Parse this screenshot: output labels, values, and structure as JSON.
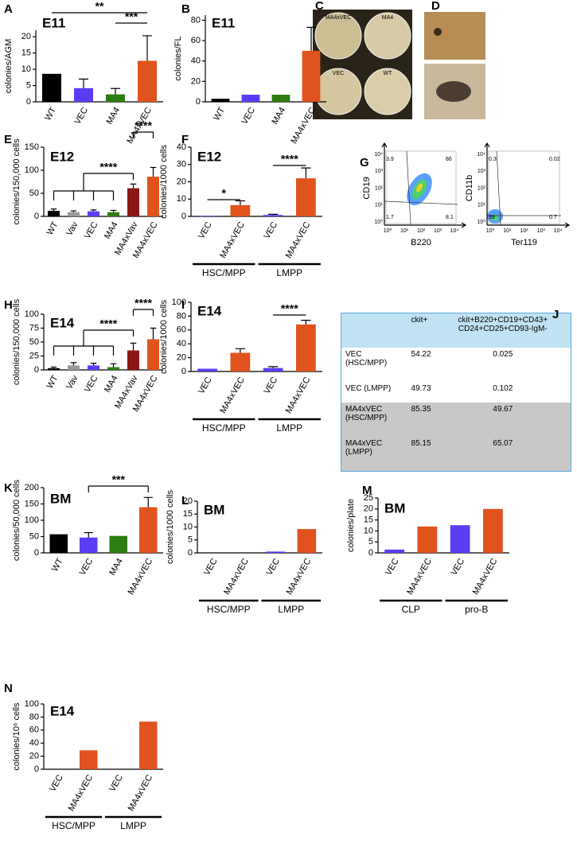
{
  "chart_data": [
    {
      "type": "bar",
      "panel": "A",
      "title": "E11",
      "y_label": "colonies/AGM",
      "categories": [
        "WT",
        "VEC",
        "MA4",
        "MA4xVEC"
      ],
      "values": [
        8.6,
        4.2,
        2.3,
        12.6
      ],
      "errors": [
        null,
        2.8,
        1.8,
        7.7
      ],
      "colors": [
        "#000000",
        "#5b3cf5",
        "#2e7d12",
        "#e0521e"
      ],
      "ylim": [
        0,
        22
      ],
      "yticks": [
        0,
        5,
        10,
        15,
        20
      ],
      "annotations": [
        "**",
        "***"
      ]
    },
    {
      "type": "bar",
      "panel": "B",
      "title": "E11",
      "y_label": "colonies/FL",
      "categories": [
        "WT",
        "VEC",
        "MA4",
        "MA4xVEC"
      ],
      "values": [
        3,
        7,
        7,
        50
      ],
      "errors": [
        null,
        null,
        null,
        23
      ],
      "colors": [
        "#000000",
        "#5b3cf5",
        "#2e7d12",
        "#e0521e"
      ],
      "ylim": [
        0,
        85
      ],
      "yticks": [
        0,
        20,
        40,
        60,
        80
      ]
    },
    {
      "type": "bar",
      "panel": "E",
      "title": "E12",
      "y_label": "colonies/150,000 cells",
      "categories": [
        "WT",
        "Vav",
        "VEC",
        "MA4",
        "MA4xVav",
        "MA4xVEC"
      ],
      "values": [
        12,
        9,
        11,
        9,
        61,
        86
      ],
      "errors": [
        4,
        3,
        3,
        4,
        9,
        20
      ],
      "colors": [
        "#000000",
        "#999999",
        "#5b3cf5",
        "#2e7d12",
        "#8b1515",
        "#e0521e"
      ],
      "ylim": [
        0,
        150
      ],
      "yticks": [
        0,
        50,
        100,
        150
      ],
      "annotations": [
        "****",
        "****"
      ]
    },
    {
      "type": "bar",
      "panel": "F",
      "title": "E12",
      "y_label": "colonies/1000 cells",
      "categories": [
        "VEC",
        "MA4xVEC",
        "VEC",
        "MA4xVEC"
      ],
      "values": [
        0.3,
        6.5,
        0.8,
        22
      ],
      "errors": [
        null,
        2.5,
        0.4,
        6
      ],
      "colors": [
        "#5b3cf5",
        "#e0521e",
        "#5b3cf5",
        "#e0521e"
      ],
      "ylim": [
        0,
        40
      ],
      "yticks": [
        0,
        10,
        20,
        30,
        40
      ],
      "groups": [
        "HSC/MPP",
        "LMPP"
      ],
      "annotations": [
        "*",
        "****"
      ]
    },
    {
      "type": "bar",
      "panel": "H",
      "title": "E14",
      "y_label": "colonies/150,000 cells",
      "categories": [
        "WT",
        "Vav",
        "VEC",
        "MA4",
        "MA4xVav",
        "MA4xVEC"
      ],
      "values": [
        3,
        8,
        8,
        5,
        35,
        55
      ],
      "errors": [
        2,
        5,
        4,
        6,
        13,
        20
      ],
      "colors": [
        "#000000",
        "#999999",
        "#5b3cf5",
        "#2e7d12",
        "#8b1515",
        "#e0521e"
      ],
      "ylim": [
        0,
        100
      ],
      "yticks": [
        0,
        25,
        50,
        75,
        100
      ],
      "annotations": [
        "****",
        "****"
      ]
    },
    {
      "type": "bar",
      "panel": "I",
      "title": "E14",
      "y_label": "colonies/1000 cells",
      "categories": [
        "VEC",
        "MA4xVEC",
        "VEC",
        "MA4xVEC"
      ],
      "values": [
        4,
        27,
        5,
        68
      ],
      "errors": [
        null,
        6,
        2,
        6
      ],
      "colors": [
        "#5b3cf5",
        "#e0521e",
        "#5b3cf5",
        "#e0521e"
      ],
      "ylim": [
        0,
        100
      ],
      "yticks": [
        0,
        20,
        40,
        60,
        80,
        100
      ],
      "groups": [
        "HSC/MPP",
        "LMPP"
      ],
      "annotations": [
        "****"
      ]
    },
    {
      "type": "bar",
      "panel": "K",
      "title": "BM",
      "y_label": "colonies/50,000 cells",
      "categories": [
        "WT",
        "VEC",
        "MA4",
        "MA4xVEC"
      ],
      "values": [
        57,
        47,
        52,
        140
      ],
      "errors": [
        null,
        15,
        null,
        30
      ],
      "colors": [
        "#000000",
        "#5b3cf5",
        "#2e7d12",
        "#e0521e"
      ],
      "ylim": [
        0,
        200
      ],
      "yticks": [
        0,
        50,
        100,
        150,
        200
      ],
      "annotations": [
        "***"
      ]
    },
    {
      "type": "bar",
      "panel": "L",
      "title": "BM",
      "y_label": "colonies/1000 cells",
      "categories": [
        "VEC",
        "MA4xVEC",
        "VEC",
        "MA4xVEC"
      ],
      "values": [
        0,
        0,
        0.5,
        9.2
      ],
      "colors": [
        "#5b3cf5",
        "#e0521e",
        "#5b3cf5",
        "#e0521e"
      ],
      "ylim": [
        0,
        20
      ],
      "yticks": [
        0,
        5,
        10,
        15,
        20
      ],
      "groups": [
        "HSC/MPP",
        "LMPP"
      ]
    },
    {
      "type": "bar",
      "panel": "M",
      "title": "BM",
      "y_label": "colonies/plate",
      "categories": [
        "VEC",
        "MA4xVEC",
        "VEC",
        "MA4xVEC"
      ],
      "values": [
        1.5,
        12,
        12.6,
        20
      ],
      "colors": [
        "#5b3cf5",
        "#e0521e",
        "#5b3cf5",
        "#e0521e"
      ],
      "ylim": [
        0,
        25
      ],
      "yticks": [
        0,
        5,
        10,
        15,
        20,
        25
      ],
      "groups": [
        "CLP",
        "pro-B"
      ]
    },
    {
      "type": "bar",
      "panel": "N",
      "title": "E14",
      "y_label": "colonies/10⁶ cells",
      "categories": [
        "VEC",
        "MA4xVEC",
        "VEC",
        "MA4xVEC"
      ],
      "values": [
        0,
        29,
        0,
        73
      ],
      "colors": [
        "#5b3cf5",
        "#e0521e",
        "#5b3cf5",
        "#e0521e"
      ],
      "ylim": [
        0,
        100
      ],
      "yticks": [
        0,
        20,
        40,
        60,
        80,
        100
      ],
      "groups": [
        "HSC/MPP",
        "LMPP"
      ]
    }
  ],
  "photos": {
    "panel_c": "C",
    "panel_d": "D",
    "dish_labels": [
      "MA4xVEC",
      "MA4",
      "VEC",
      "WT"
    ]
  },
  "flow": {
    "panel": "G",
    "ticks": [
      "10⁰",
      "10¹",
      "10²",
      "10³",
      "10⁴"
    ],
    "plots": [
      {
        "x_label": "B220",
        "y_label": "CD19",
        "quadrants": [
          3.9,
          86,
          1.7,
          8.1
        ]
      },
      {
        "x_label": "Ter119",
        "y_label": "CD11b",
        "quadrants": [
          0.3,
          0.02,
          99,
          0.7
        ]
      }
    ]
  },
  "table": {
    "panel": "J",
    "header": [
      "ckit+",
      "ckit+B220+CD19+CD43+ CD24+CD25+CD93-IgM-"
    ],
    "rows": [
      [
        "VEC (HSC/MPP)",
        54.22,
        0.025
      ],
      [
        "VEC (LMPP)",
        49.73,
        0.102
      ],
      [
        "MA4xVEC (HSC/MPP)",
        85.35,
        49.67
      ],
      [
        "MA4xVEC (LMPP)",
        85.15,
        65.07
      ]
    ]
  }
}
